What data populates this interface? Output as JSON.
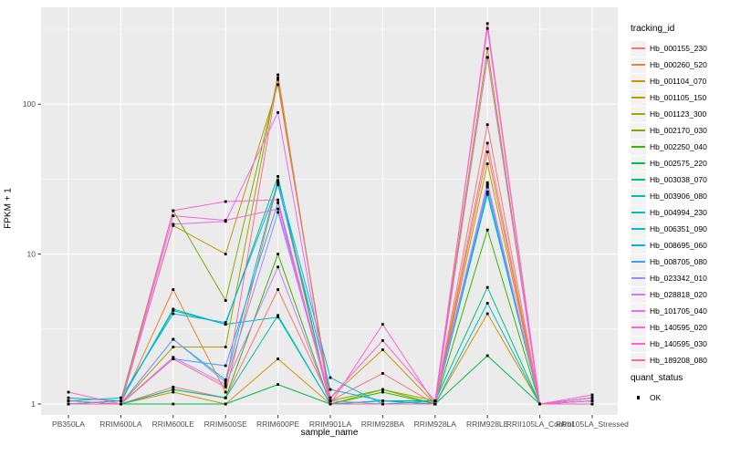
{
  "legend": {
    "color_title": "tracking_id",
    "shape_title": "quant_status",
    "shape_items": [
      {
        "label": "OK"
      }
    ]
  },
  "chart_data": {
    "type": "line",
    "title": "",
    "xlabel": "sample_name",
    "ylabel": "FPKM + 1",
    "y_scale": "log10",
    "ylim": [
      0.9,
      440
    ],
    "y_ticks": [
      1,
      10,
      100
    ],
    "y_minor_ticks": [
      3.162,
      31.62,
      316.2
    ],
    "grid": "white major and minor on grey panel",
    "legend_position": "right",
    "panel_background": "#EBEBEB",
    "point_shape": "small black square",
    "point_color": "#000000",
    "categories": [
      "PB350LA",
      "RRIM600LA",
      "RRIM600LE",
      "RRIM600SE",
      "RRIM600PE",
      "RRIM901LA",
      "RRIM928BA",
      "RRIM928LA",
      "RRIM928LE",
      "RRII105LA_Control",
      "RRII105LA_Stressed"
    ],
    "series": [
      {
        "name": "Hb_000155_230",
        "color": "#F8766D",
        "values": [
          1.05,
          1.0,
          1.3,
          1.1,
          5.8,
          1.05,
          1.6,
          1.0,
          73,
          1.0,
          1.0
        ]
      },
      {
        "name": "Hb_000260_520",
        "color": "#EA8331",
        "values": [
          1.0,
          1.0,
          5.8,
          1.2,
          30,
          1.0,
          1.05,
          1.0,
          48,
          1.0,
          1.05
        ]
      },
      {
        "name": "Hb_001104_070",
        "color": "#D89000",
        "values": [
          1.0,
          1.0,
          1.2,
          1.0,
          2.0,
          1.0,
          1.0,
          1.0,
          4.0,
          1.0,
          1.0
        ]
      },
      {
        "name": "Hb_001105_150",
        "color": "#C09B00",
        "values": [
          1.0,
          1.0,
          15.5,
          10.0,
          135,
          1.1,
          2.3,
          1.0,
          40,
          1.0,
          1.0
        ]
      },
      {
        "name": "Hb_001123_300",
        "color": "#A3A500",
        "values": [
          1.05,
          1.0,
          2.4,
          2.4,
          157,
          1.0,
          1.25,
          1.05,
          235,
          1.0,
          1.05
        ]
      },
      {
        "name": "Hb_002170_030",
        "color": "#7CAE00",
        "values": [
          1.0,
          1.05,
          19.5,
          4.9,
          146,
          1.05,
          1.25,
          1.0,
          205,
          1.0,
          1.1
        ]
      },
      {
        "name": "Hb_002250_040",
        "color": "#39B600",
        "values": [
          1.0,
          1.0,
          1.25,
          1.1,
          10.0,
          1.0,
          1.2,
          1.0,
          14.5,
          1.0,
          1.1
        ]
      },
      {
        "name": "Hb_002575_220",
        "color": "#00BB4E",
        "values": [
          1.0,
          1.0,
          1.0,
          1.0,
          1.35,
          1.0,
          1.0,
          1.0,
          2.1,
          1.0,
          1.05
        ]
      },
      {
        "name": "Hb_003038_070",
        "color": "#00BF7D",
        "values": [
          1.1,
          1.05,
          4.2,
          3.4,
          33,
          1.0,
          1.05,
          1.05,
          6.0,
          1.0,
          1.1
        ]
      },
      {
        "name": "Hb_003906_080",
        "color": "#00C1A3",
        "values": [
          1.05,
          1.0,
          1.25,
          1.1,
          3.9,
          1.0,
          1.0,
          1.0,
          25,
          1.0,
          1.05
        ]
      },
      {
        "name": "Hb_004994_230",
        "color": "#00BFC4",
        "values": [
          1.0,
          1.05,
          4.3,
          3.4,
          3.8,
          1.0,
          1.05,
          1.0,
          4.7,
          1.0,
          1.0
        ]
      },
      {
        "name": "Hb_006351_090",
        "color": "#00BAE0",
        "values": [
          1.0,
          1.0,
          2.7,
          1.45,
          31,
          1.5,
          1.0,
          1.05,
          29,
          1.0,
          1.05
        ]
      },
      {
        "name": "Hb_008695_060",
        "color": "#00B0F6",
        "values": [
          1.05,
          1.1,
          4.0,
          3.5,
          29,
          1.25,
          1.05,
          1.0,
          26,
          1.0,
          1.05
        ]
      },
      {
        "name": "Hb_008705_080",
        "color": "#35A2FF",
        "values": [
          1.0,
          1.0,
          2.0,
          1.8,
          22,
          1.0,
          1.0,
          1.0,
          28,
          1.0,
          1.0
        ]
      },
      {
        "name": "Hb_023342_010",
        "color": "#9590FF",
        "values": [
          1.0,
          1.0,
          2.7,
          1.4,
          19,
          1.05,
          1.0,
          1.0,
          29,
          1.0,
          1.05
        ]
      },
      {
        "name": "Hb_028818_020",
        "color": "#C77CFF",
        "values": [
          1.0,
          1.0,
          2.05,
          1.35,
          8.2,
          1.0,
          1.0,
          1.0,
          30,
          1.0,
          1.0
        ]
      },
      {
        "name": "Hb_101705_040",
        "color": "#E76BF3",
        "values": [
          1.0,
          1.0,
          15.8,
          16.5,
          88,
          1.0,
          1.0,
          1.0,
          205,
          1.0,
          1.05
        ]
      },
      {
        "name": "Hb_140595_020",
        "color": "#FA62DB",
        "values": [
          1.05,
          1.0,
          18.0,
          16.8,
          20,
          1.1,
          2.65,
          1.05,
          320,
          1.0,
          1.1
        ]
      },
      {
        "name": "Hb_140595_030",
        "color": "#FF61CC",
        "values": [
          1.2,
          1.0,
          19.5,
          22.4,
          23,
          1.0,
          3.4,
          1.0,
          345,
          1.0,
          1.15
        ]
      },
      {
        "name": "Hb_189208_080",
        "color": "#FF6A98",
        "values": [
          1.0,
          1.0,
          2.0,
          1.3,
          150,
          1.0,
          1.0,
          1.0,
          55,
          1.0,
          1.0
        ]
      }
    ]
  }
}
